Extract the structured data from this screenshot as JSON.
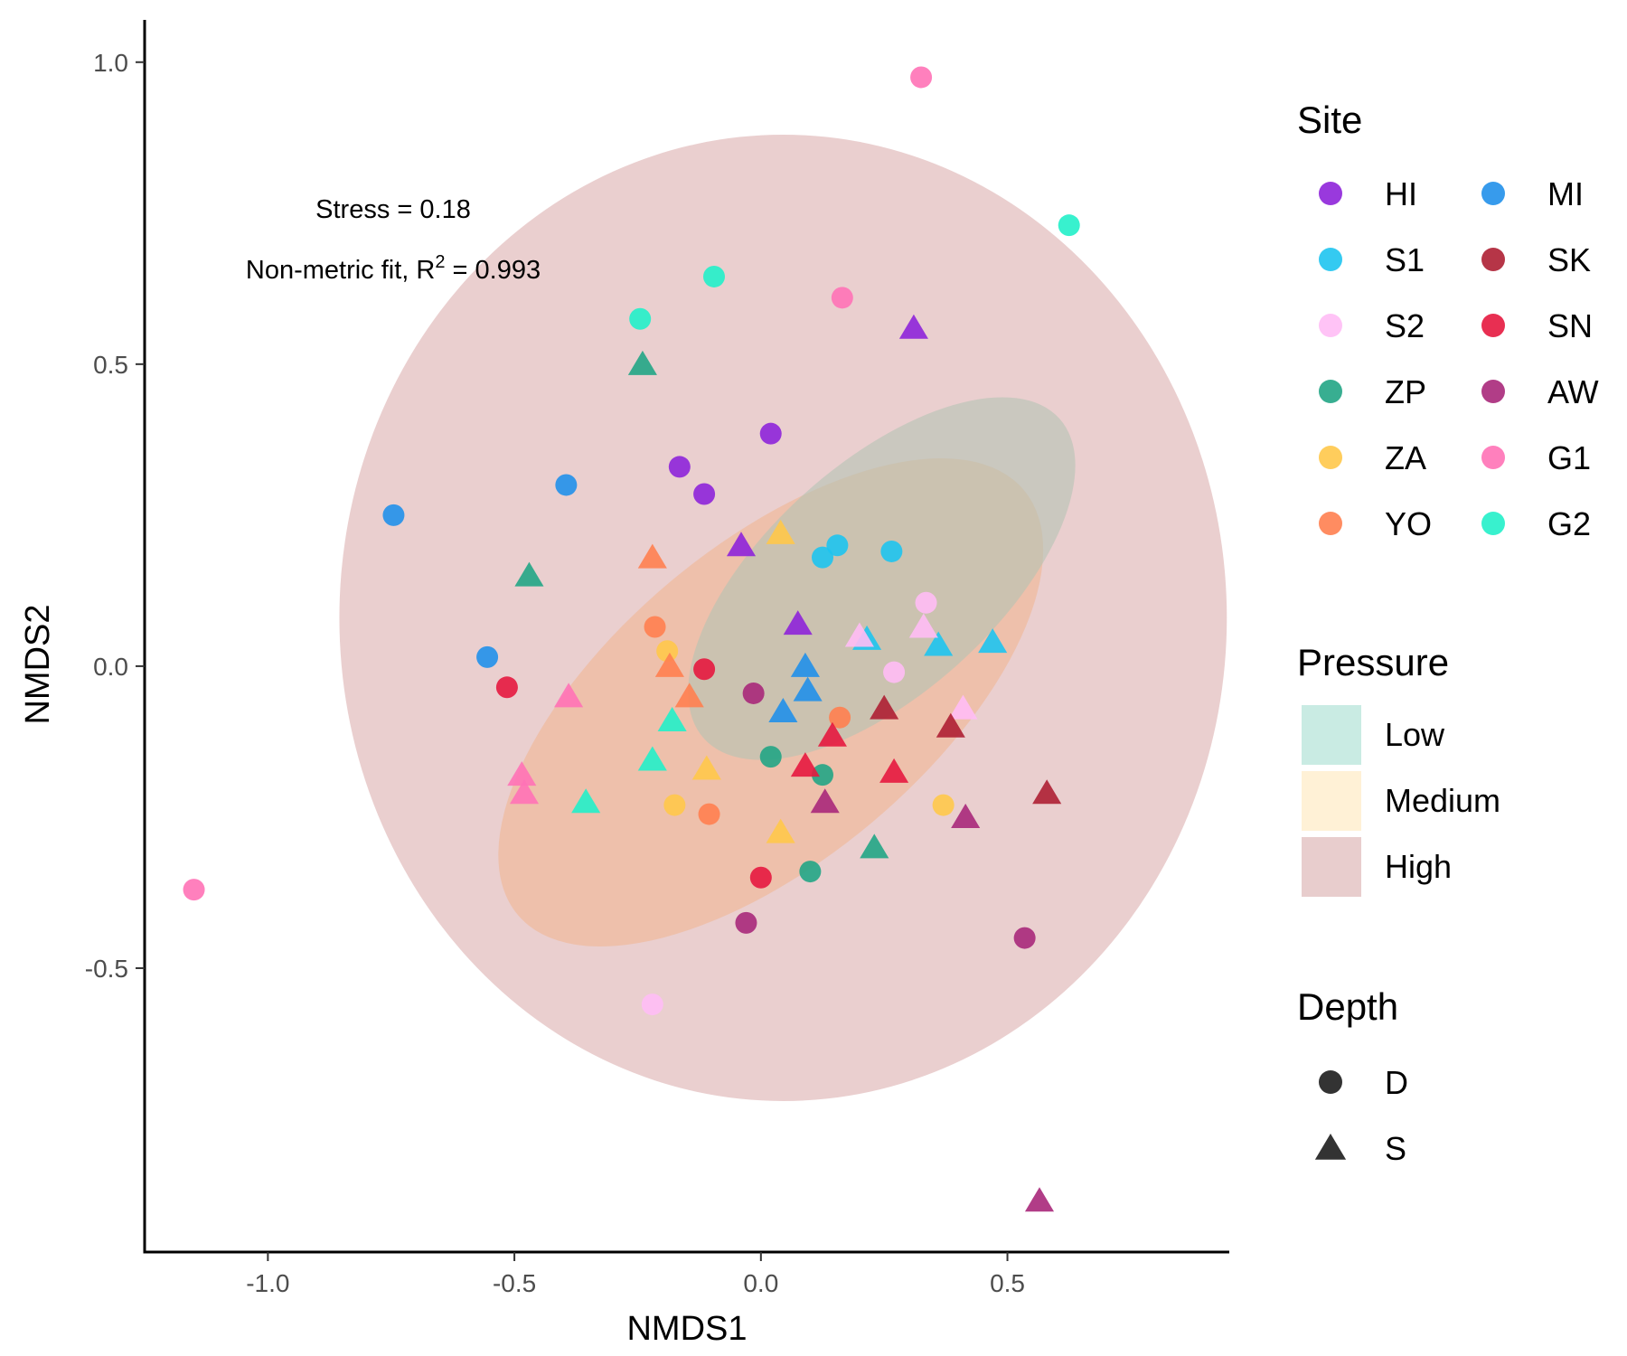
{
  "chart_data": {
    "type": "scatter",
    "xlabel": "NMDS1",
    "ylabel": "NMDS2",
    "xlim": [
      -1.25,
      0.95
    ],
    "ylim": [
      -0.97,
      1.07
    ],
    "xticks": [
      -1.0,
      -0.5,
      0.0,
      0.5
    ],
    "xtick_labels": [
      "-1.0",
      "-0.5",
      "0.0",
      "0.5"
    ],
    "yticks": [
      -0.5,
      0.0,
      0.5,
      1.0
    ],
    "ytick_labels": [
      "-0.5",
      "0.0",
      "0.5",
      "1.0"
    ],
    "grid": false,
    "annotations": {
      "stress": "Stress = 0.18",
      "fit_prefix": "Non-metric fit, R",
      "fit_sup": "2",
      "fit_suffix": " = 0.993"
    },
    "pressure_ellipses": [
      {
        "name": "High",
        "cx": 0.045,
        "cy": 0.08,
        "rx": 0.9,
        "ry": 0.8,
        "angle": 0,
        "fill": "#d8a8a8",
        "opacity": 0.55
      },
      {
        "name": "Medium",
        "cx": 0.02,
        "cy": -0.06,
        "rx": 0.67,
        "ry": 0.26,
        "angle": -40,
        "fill": "#f1b48e",
        "opacity": 0.55
      },
      {
        "name": "Low",
        "cx": 0.245,
        "cy": 0.145,
        "rx": 0.485,
        "ry": 0.19,
        "angle": -42,
        "fill": "#b4c3b4",
        "opacity": 0.6
      }
    ],
    "sites": [
      {
        "name": "HI",
        "color": "#8e24d9"
      },
      {
        "name": "S1",
        "color": "#1ec4f0"
      },
      {
        "name": "S2",
        "color": "#ffbdf5"
      },
      {
        "name": "ZP",
        "color": "#22a585"
      },
      {
        "name": "ZA",
        "color": "#ffc84a"
      },
      {
        "name": "YO",
        "color": "#ff7f50"
      },
      {
        "name": "MI",
        "color": "#2190ea"
      },
      {
        "name": "SK",
        "color": "#ae1f33"
      },
      {
        "name": "SN",
        "color": "#e5183f"
      },
      {
        "name": "AW",
        "color": "#a8287a"
      },
      {
        "name": "G1",
        "color": "#ff72b6"
      },
      {
        "name": "G2",
        "color": "#22f0c9"
      }
    ],
    "points": [
      {
        "site": "HI",
        "depth": "D",
        "x": 0.02,
        "y": 0.385
      },
      {
        "site": "HI",
        "depth": "D",
        "x": -0.165,
        "y": 0.33
      },
      {
        "site": "HI",
        "depth": "D",
        "x": -0.115,
        "y": 0.285
      },
      {
        "site": "HI",
        "depth": "S",
        "x": 0.31,
        "y": 0.56
      },
      {
        "site": "HI",
        "depth": "S",
        "x": -0.04,
        "y": 0.2
      },
      {
        "site": "HI",
        "depth": "S",
        "x": 0.075,
        "y": 0.07
      },
      {
        "site": "S1",
        "depth": "D",
        "x": 0.125,
        "y": 0.18
      },
      {
        "site": "S1",
        "depth": "D",
        "x": 0.155,
        "y": 0.2
      },
      {
        "site": "S1",
        "depth": "D",
        "x": 0.265,
        "y": 0.19
      },
      {
        "site": "S1",
        "depth": "S",
        "x": 0.215,
        "y": 0.045
      },
      {
        "site": "S1",
        "depth": "S",
        "x": 0.36,
        "y": 0.035
      },
      {
        "site": "S1",
        "depth": "S",
        "x": 0.47,
        "y": 0.04
      },
      {
        "site": "S2",
        "depth": "D",
        "x": 0.335,
        "y": 0.105
      },
      {
        "site": "S2",
        "depth": "D",
        "x": 0.27,
        "y": -0.01
      },
      {
        "site": "S2",
        "depth": "D",
        "x": -0.22,
        "y": -0.56
      },
      {
        "site": "S2",
        "depth": "S",
        "x": 0.2,
        "y": 0.05
      },
      {
        "site": "S2",
        "depth": "S",
        "x": 0.33,
        "y": 0.065
      },
      {
        "site": "S2",
        "depth": "S",
        "x": 0.41,
        "y": -0.07
      },
      {
        "site": "ZP",
        "depth": "D",
        "x": 0.02,
        "y": -0.15
      },
      {
        "site": "ZP",
        "depth": "D",
        "x": 0.125,
        "y": -0.18
      },
      {
        "site": "ZP",
        "depth": "D",
        "x": 0.1,
        "y": -0.34
      },
      {
        "site": "ZP",
        "depth": "S",
        "x": -0.24,
        "y": 0.5
      },
      {
        "site": "ZP",
        "depth": "S",
        "x": -0.47,
        "y": 0.15
      },
      {
        "site": "ZP",
        "depth": "S",
        "x": 0.23,
        "y": -0.3
      },
      {
        "site": "ZA",
        "depth": "D",
        "x": -0.19,
        "y": 0.025
      },
      {
        "site": "ZA",
        "depth": "D",
        "x": -0.175,
        "y": -0.23
      },
      {
        "site": "ZA",
        "depth": "D",
        "x": 0.37,
        "y": -0.23
      },
      {
        "site": "ZA",
        "depth": "S",
        "x": 0.04,
        "y": 0.22
      },
      {
        "site": "ZA",
        "depth": "S",
        "x": -0.11,
        "y": -0.17
      },
      {
        "site": "ZA",
        "depth": "S",
        "x": 0.04,
        "y": -0.275
      },
      {
        "site": "YO",
        "depth": "D",
        "x": -0.215,
        "y": 0.065
      },
      {
        "site": "YO",
        "depth": "D",
        "x": 0.16,
        "y": -0.085
      },
      {
        "site": "YO",
        "depth": "D",
        "x": -0.105,
        "y": -0.245
      },
      {
        "site": "YO",
        "depth": "S",
        "x": -0.22,
        "y": 0.18
      },
      {
        "site": "YO",
        "depth": "S",
        "x": -0.185,
        "y": 0.0
      },
      {
        "site": "YO",
        "depth": "S",
        "x": -0.145,
        "y": -0.05
      },
      {
        "site": "MI",
        "depth": "D",
        "x": -0.745,
        "y": 0.25
      },
      {
        "site": "MI",
        "depth": "D",
        "x": -0.395,
        "y": 0.3
      },
      {
        "site": "MI",
        "depth": "D",
        "x": -0.555,
        "y": 0.015
      },
      {
        "site": "MI",
        "depth": "S",
        "x": 0.09,
        "y": 0.0
      },
      {
        "site": "MI",
        "depth": "S",
        "x": 0.095,
        "y": -0.04
      },
      {
        "site": "MI",
        "depth": "S",
        "x": 0.045,
        "y": -0.075
      },
      {
        "site": "SK",
        "depth": "S",
        "x": 0.25,
        "y": -0.07
      },
      {
        "site": "SK",
        "depth": "S",
        "x": 0.385,
        "y": -0.1
      },
      {
        "site": "SK",
        "depth": "S",
        "x": 0.58,
        "y": -0.21
      },
      {
        "site": "SN",
        "depth": "D",
        "x": -0.115,
        "y": -0.005
      },
      {
        "site": "SN",
        "depth": "D",
        "x": -0.515,
        "y": -0.035
      },
      {
        "site": "SN",
        "depth": "D",
        "x": 0.0,
        "y": -0.35
      },
      {
        "site": "SN",
        "depth": "S",
        "x": 0.145,
        "y": -0.115
      },
      {
        "site": "SN",
        "depth": "S",
        "x": 0.09,
        "y": -0.165
      },
      {
        "site": "SN",
        "depth": "S",
        "x": 0.27,
        "y": -0.175
      },
      {
        "site": "AW",
        "depth": "D",
        "x": -0.015,
        "y": -0.045
      },
      {
        "site": "AW",
        "depth": "D",
        "x": -0.03,
        "y": -0.425
      },
      {
        "site": "AW",
        "depth": "D",
        "x": 0.535,
        "y": -0.45
      },
      {
        "site": "AW",
        "depth": "S",
        "x": 0.13,
        "y": -0.225
      },
      {
        "site": "AW",
        "depth": "S",
        "x": 0.415,
        "y": -0.25
      },
      {
        "site": "AW",
        "depth": "S",
        "x": 0.565,
        "y": -0.885
      },
      {
        "site": "G1",
        "depth": "D",
        "x": 0.325,
        "y": 0.975
      },
      {
        "site": "G1",
        "depth": "D",
        "x": 0.165,
        "y": 0.61
      },
      {
        "site": "G1",
        "depth": "D",
        "x": -1.15,
        "y": -0.37
      },
      {
        "site": "G1",
        "depth": "S",
        "x": -0.39,
        "y": -0.05
      },
      {
        "site": "G1",
        "depth": "S",
        "x": -0.485,
        "y": -0.18
      },
      {
        "site": "G1",
        "depth": "S",
        "x": -0.48,
        "y": -0.21
      },
      {
        "site": "G2",
        "depth": "D",
        "x": 0.625,
        "y": 0.73
      },
      {
        "site": "G2",
        "depth": "D",
        "x": -0.095,
        "y": 0.645
      },
      {
        "site": "G2",
        "depth": "D",
        "x": -0.245,
        "y": 0.575
      },
      {
        "site": "G2",
        "depth": "S",
        "x": -0.18,
        "y": -0.09
      },
      {
        "site": "G2",
        "depth": "S",
        "x": -0.22,
        "y": -0.155
      },
      {
        "site": "G2",
        "depth": "S",
        "x": -0.355,
        "y": -0.225
      }
    ],
    "legend": {
      "site_title": "Site",
      "pressure_title": "Pressure",
      "pressure_items": [
        {
          "label": "Low",
          "color": "#c9ebe3"
        },
        {
          "label": "Medium",
          "color": "#fff1d6"
        },
        {
          "label": "High",
          "color": "#e8cdcd"
        }
      ],
      "depth_title": "Depth",
      "depth_items": [
        {
          "label": "D",
          "shape": "circle"
        },
        {
          "label": "S",
          "shape": "triangle"
        }
      ]
    }
  }
}
